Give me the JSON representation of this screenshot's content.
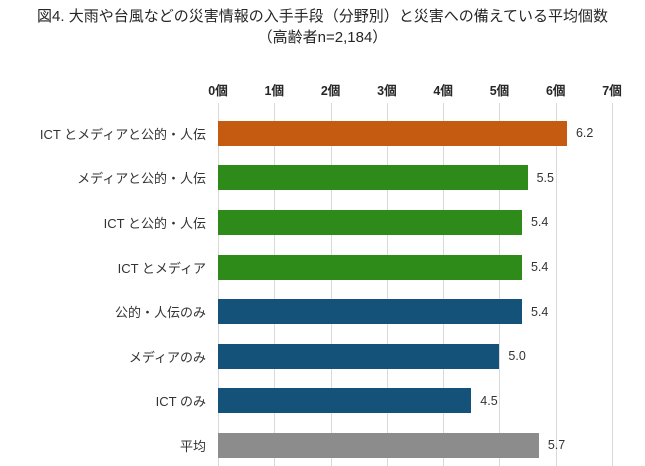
{
  "title": {
    "line1": "図4. 大雨や台風などの災害情報の入手手段（分野別）と災害への備えている平均個数",
    "line2": "（高齢者n=2,184）"
  },
  "chart_data": {
    "type": "bar",
    "orientation": "horizontal",
    "title": "図4. 大雨や台風などの災害情報の入手手段（分野別）と災害への備えている平均個数（高齢者n=2,184）",
    "categories": [
      "ICT とメディアと公的・人伝",
      "メディアと公的・人伝",
      "ICT と公的・人伝",
      "ICT とメディア",
      "公的・人伝のみ",
      "メディアのみ",
      "ICT のみ",
      "平均"
    ],
    "values": [
      6.2,
      5.5,
      5.4,
      5.4,
      5.4,
      5.0,
      4.5,
      5.7
    ],
    "value_labels": [
      "6.2",
      "5.5",
      "5.4",
      "5.4",
      "5.4",
      "5.0",
      "4.5",
      "5.7"
    ],
    "bar_colors": [
      "#C55A11",
      "#2E8B1A",
      "#2E8B1A",
      "#2E8B1A",
      "#15527A",
      "#15527A",
      "#15527A",
      "#8C8C8C"
    ],
    "x_ticks": [
      "0個",
      "1個",
      "2個",
      "3個",
      "4個",
      "5個",
      "6個",
      "7個"
    ],
    "xlim": [
      0,
      7
    ],
    "xlabel": "",
    "ylabel": "",
    "grid": "vertical-only",
    "legend": "none",
    "colors": {
      "gridline": "#D9D9D9",
      "text": "#333333",
      "title_text": "#262626"
    }
  }
}
